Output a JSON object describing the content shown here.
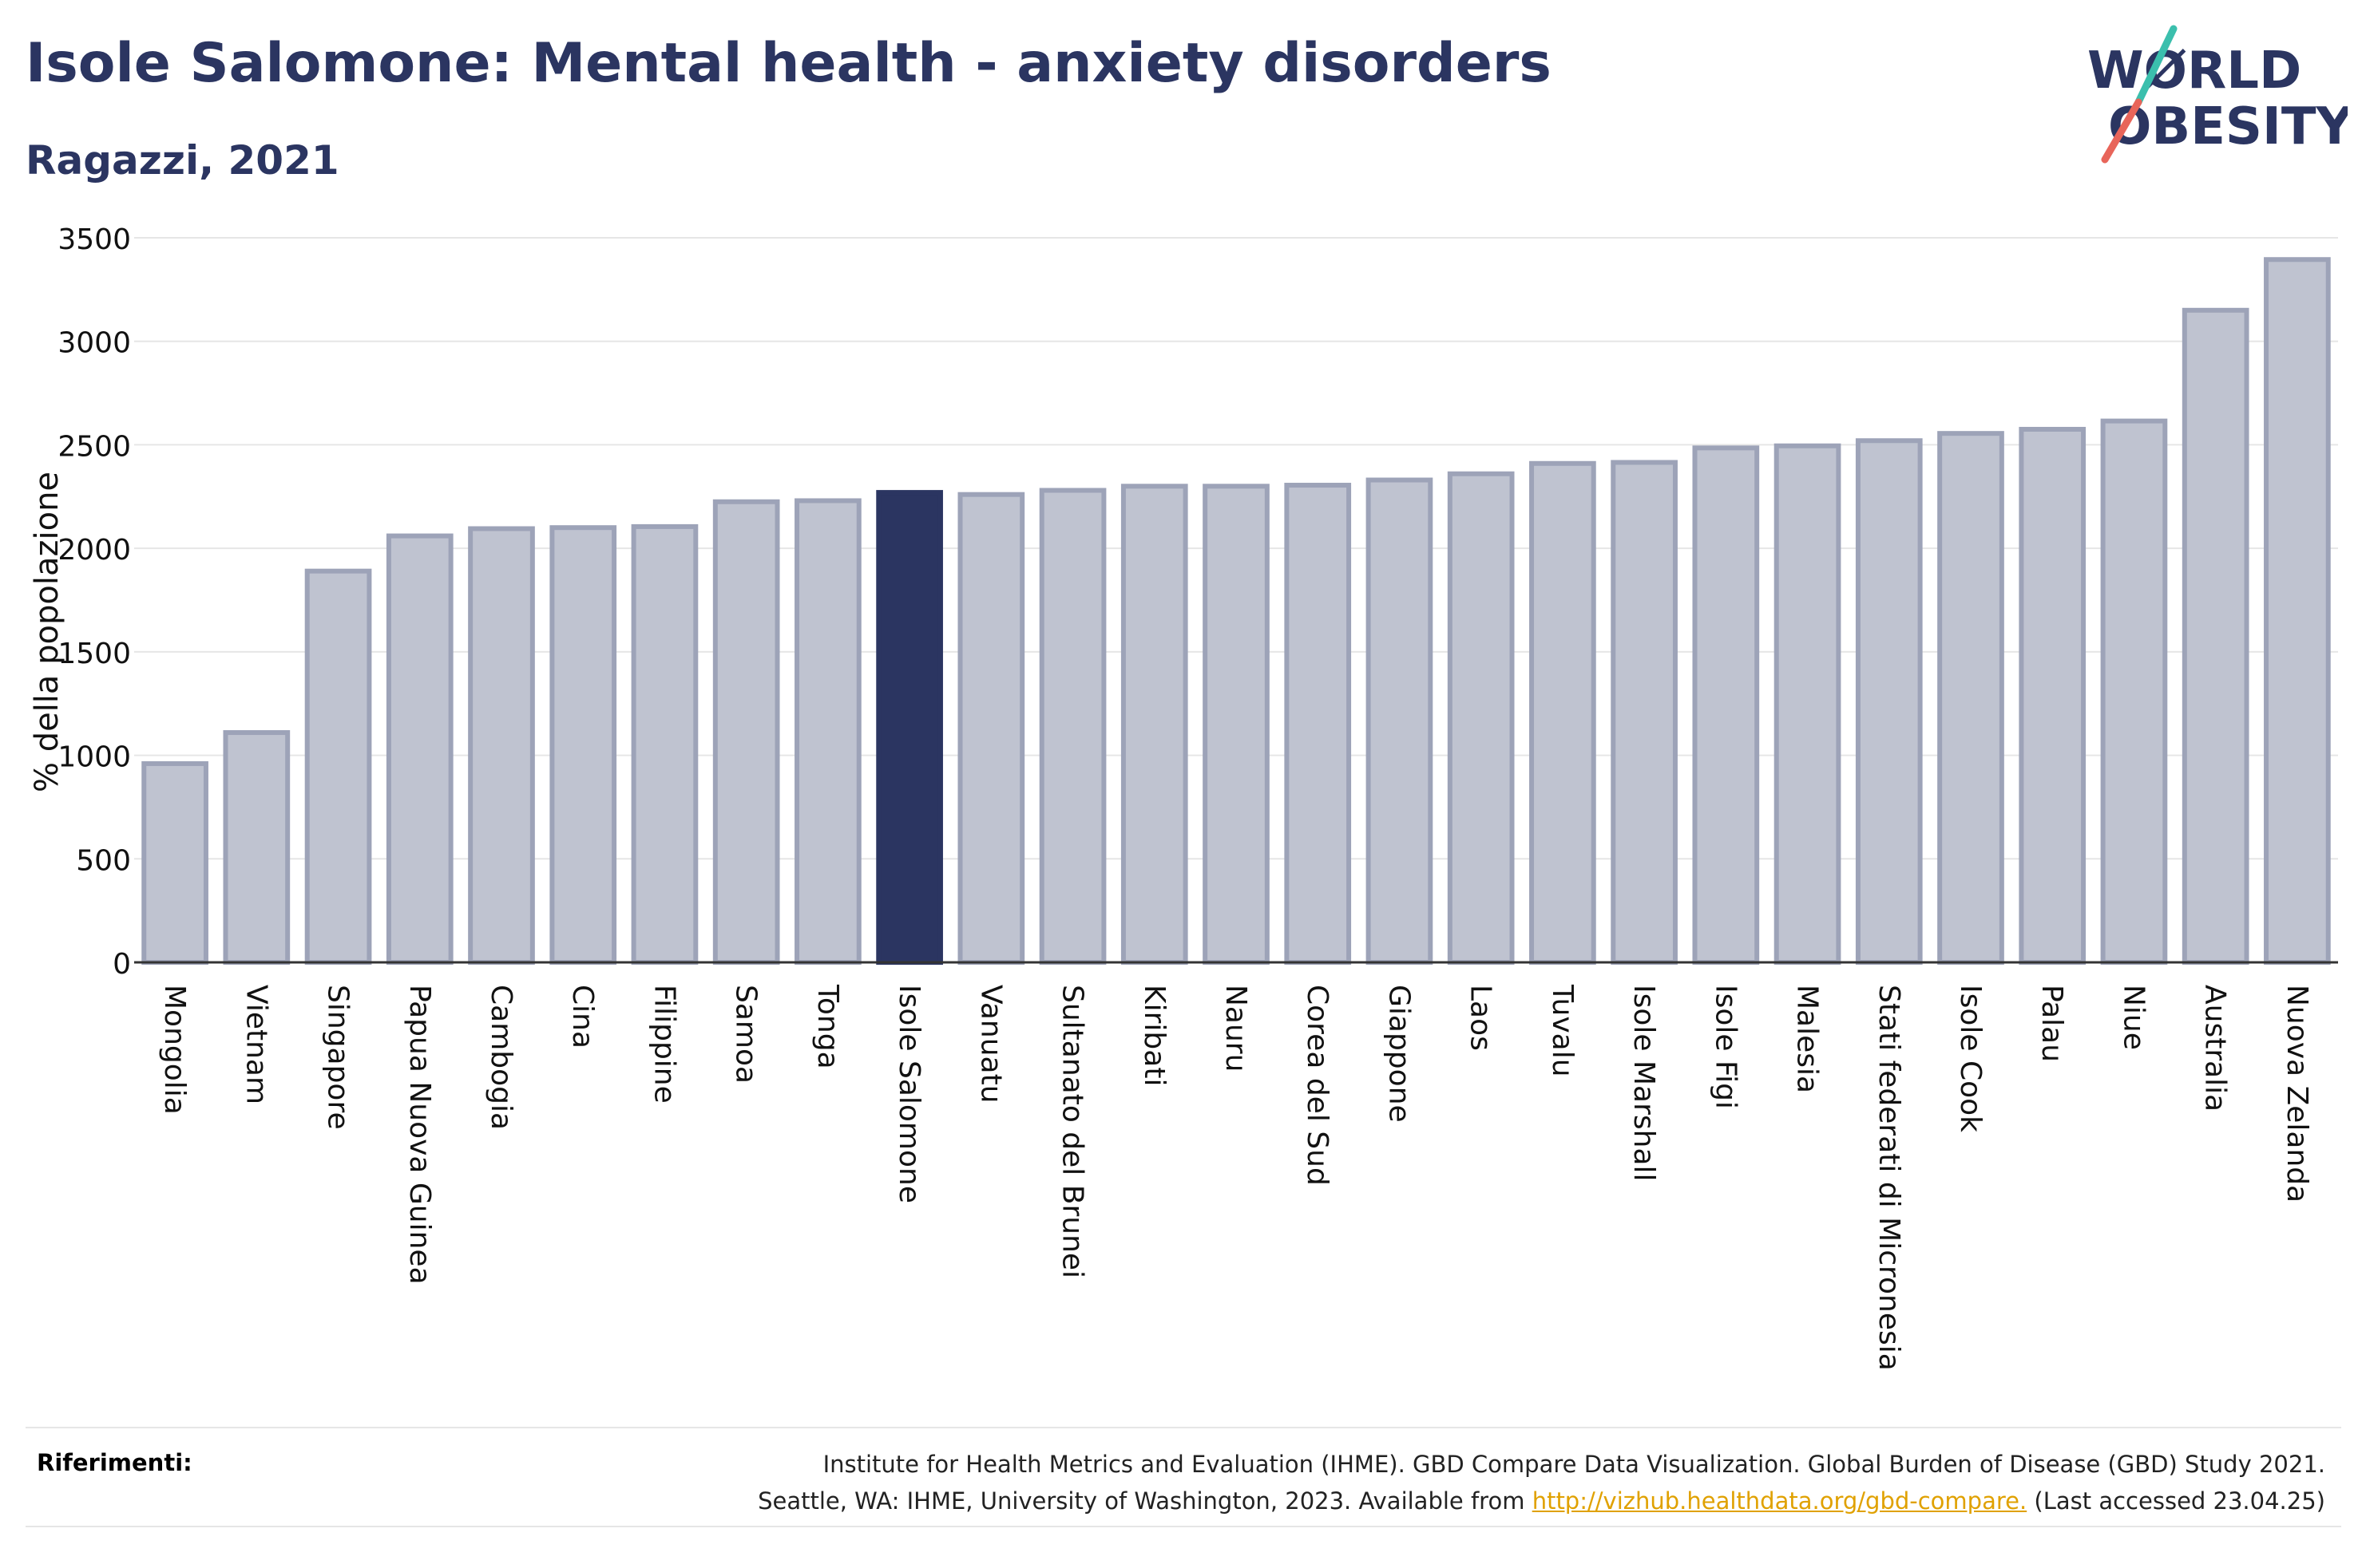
{
  "header": {
    "title": "Isole Salomone: Mental health - anxiety disorders",
    "subtitle": "Ragazzi, 2021"
  },
  "logo": {
    "line1": "WØRLD",
    "line2": "OBESITY",
    "colors": {
      "text": "#2b3561",
      "slash_top": "#3bbfad",
      "slash_bottom": "#e8655a"
    }
  },
  "colors": {
    "bar_fill": "#bfc3d0",
    "bar_stroke": "#9da3b8",
    "highlight_fill": "#2b3561",
    "grid": "#e6e6e6",
    "axis": "#333333"
  },
  "chart_data": {
    "type": "bar",
    "ylabel": "% della popolazione",
    "ylim": [
      0,
      3500
    ],
    "yticks": [
      0,
      500,
      1000,
      1500,
      2000,
      2500,
      3000,
      3500
    ],
    "grid": true,
    "highlight": "Isole Salomone",
    "categories": [
      "Mongolia",
      "Vietnam",
      "Singapore",
      "Papua Nuova Guinea",
      "Cambogia",
      "Cina",
      "Filippine",
      "Samoa",
      "Tonga",
      "Isole Salomone",
      "Vanuatu",
      "Sultanato del Brunei",
      "Kiribati",
      "Nauru",
      "Corea del Sud",
      "Giappone",
      "Laos",
      "Tuvalu",
      "Isole Marshall",
      "Isole Figi",
      "Malesia",
      "Stati federati di Micronesia",
      "Isole Cook",
      "Palau",
      "Niue",
      "Australia",
      "Nuova Zelanda"
    ],
    "values": [
      960,
      1110,
      1890,
      2060,
      2095,
      2100,
      2105,
      2225,
      2230,
      2270,
      2260,
      2280,
      2300,
      2300,
      2305,
      2330,
      2360,
      2410,
      2415,
      2485,
      2495,
      2520,
      2555,
      2575,
      2615,
      3150,
      3395
    ]
  },
  "references": {
    "label": "Riferimenti:",
    "line1": "Institute for Health Metrics and Evaluation (IHME). GBD Compare Data Visualization. Global Burden of Disease (GBD) Study 2021.",
    "line2_before": "Seattle, WA: IHME, University of Washington, 2023. Available from ",
    "link": "http://vizhub.healthdata.org/gbd-compare.",
    "line2_after": " (Last accessed 23.04.25)"
  }
}
